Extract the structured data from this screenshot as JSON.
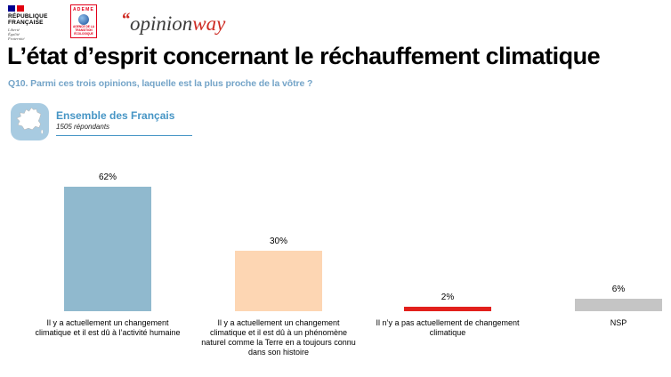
{
  "header": {
    "republique": {
      "name": [
        "RÉPUBLIQUE",
        "FRANÇAISE"
      ],
      "motto": [
        "Liberté",
        "Égalité",
        "Fraternité"
      ]
    },
    "ademe": {
      "label": "ADEME",
      "tagline": "AGENCE DE LA TRANSITION ÉCOLOGIQUE"
    },
    "opinionway": {
      "quote": "“",
      "word1": "opinion",
      "word2": "way"
    }
  },
  "title": "L’état d’esprit concernant le réchauffement climatique",
  "question": "Q10. Parmi ces trois opinions, laquelle est la plus proche de la vôtre ?",
  "segment": {
    "icon": "france-map-icon",
    "label": "Ensemble des Français",
    "respondents": "1505 répondants"
  },
  "chart_data": {
    "type": "bar",
    "title": "L’état d’esprit concernant le réchauffement climatique",
    "categories": [
      "Il y a actuellement un changement climatique et il est dû à l’activité humaine",
      "Il y a actuellement un changement climatique et il est dû à un phénomène naturel comme la Terre en a toujours connu dans son histoire",
      "Il n’y a pas actuellement de changement climatique",
      "NSP"
    ],
    "values": [
      62,
      30,
      2,
      6
    ],
    "value_labels": [
      "62%",
      "30%",
      "2%",
      "6%"
    ],
    "colors": [
      "#90B9CE",
      "#FDD6B3",
      "#E2201C",
      "#C5C5C5"
    ],
    "xlabel": "",
    "ylabel": "",
    "ylim": [
      0,
      70
    ],
    "grid": false,
    "legend": false,
    "value_label_position": "above-bar"
  }
}
